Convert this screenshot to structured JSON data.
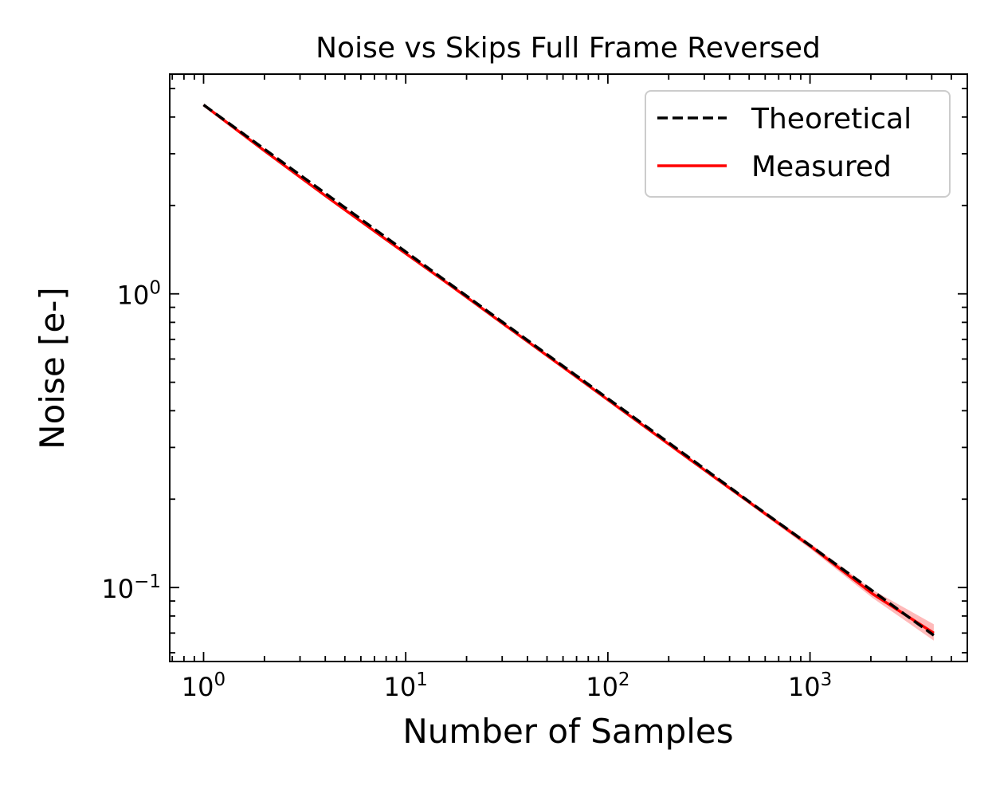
{
  "chart_data": {
    "type": "line",
    "title": "Noise vs Skips Full Frame Reversed",
    "xlabel": "Number of Samples",
    "ylabel": "Noise [e-]",
    "xscale": "log",
    "yscale": "log",
    "xlim": [
      0.68,
      6000
    ],
    "ylim": [
      0.056,
      5.6
    ],
    "grid": false,
    "legend_position": "top-right",
    "x_ticks": [
      {
        "value": 1,
        "base": "10",
        "exp": "0"
      },
      {
        "value": 10,
        "base": "10",
        "exp": "1"
      },
      {
        "value": 100,
        "base": "10",
        "exp": "2"
      },
      {
        "value": 1000,
        "base": "10",
        "exp": "3"
      }
    ],
    "y_ticks": [
      {
        "value": 1,
        "base": "10",
        "exp": "0"
      },
      {
        "value": 0.1,
        "base": "10",
        "exp": "−1"
      }
    ],
    "series": [
      {
        "name": "Theoretical",
        "style": "dashed",
        "color": "#000000",
        "x": [
          1,
          2,
          4,
          8,
          16,
          32,
          64,
          128,
          256,
          512,
          1024,
          2048,
          4096
        ],
        "y": [
          4.4,
          3.11,
          2.2,
          1.556,
          1.1,
          0.778,
          0.55,
          0.389,
          0.275,
          0.194,
          0.1375,
          0.0972,
          0.0688
        ]
      },
      {
        "name": "Measured",
        "style": "solid",
        "color": "#ff0000",
        "band_color": "#ffb3b3",
        "x": [
          1,
          2,
          4,
          8,
          16,
          32,
          64,
          128,
          256,
          512,
          1024,
          2048,
          4096
        ],
        "y": [
          4.4,
          3.07,
          2.16,
          1.53,
          1.09,
          0.77,
          0.545,
          0.385,
          0.272,
          0.193,
          0.137,
          0.095,
          0.07
        ],
        "band_low": [
          4.37,
          3.05,
          2.14,
          1.51,
          1.08,
          0.762,
          0.54,
          0.381,
          0.269,
          0.19,
          0.134,
          0.092,
          0.066
        ],
        "band_high": [
          4.43,
          3.09,
          2.18,
          1.55,
          1.1,
          0.778,
          0.55,
          0.389,
          0.275,
          0.196,
          0.14,
          0.098,
          0.075
        ]
      }
    ]
  }
}
